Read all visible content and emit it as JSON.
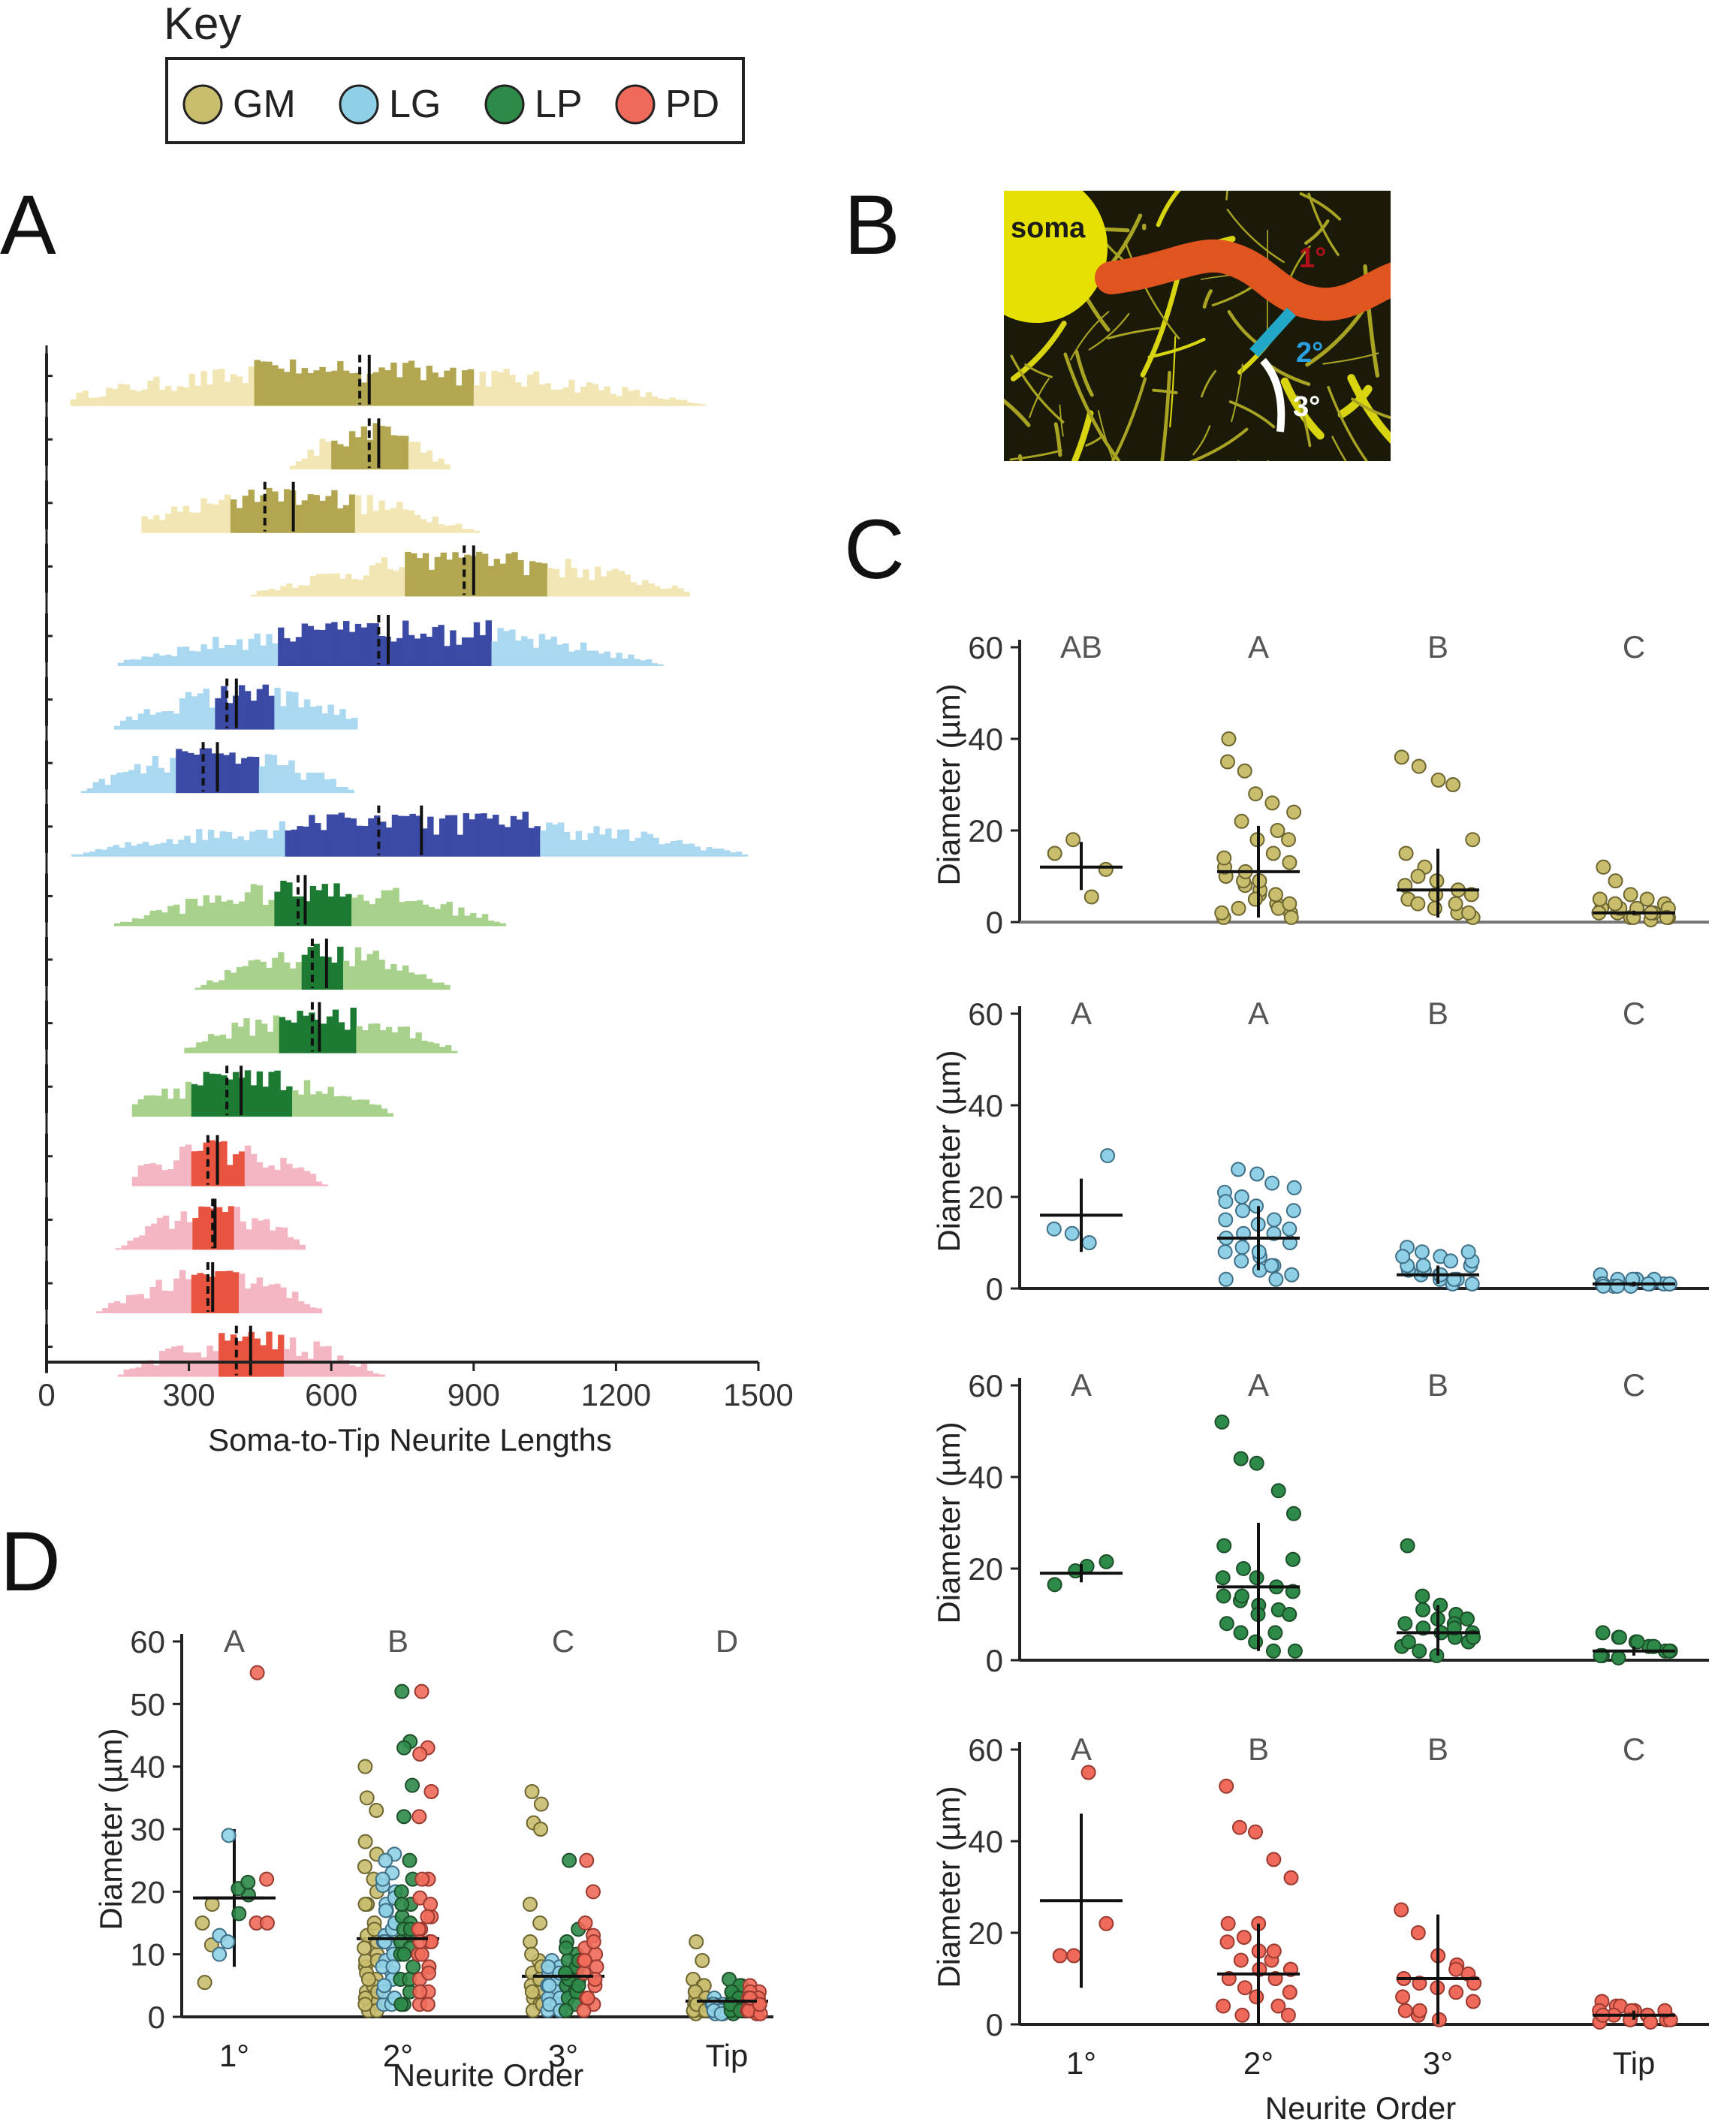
{
  "key": {
    "title": "Key",
    "items": [
      {
        "label": "GM",
        "color": "#c9bd6e"
      },
      {
        "label": "LG",
        "color": "#8fd0e6"
      },
      {
        "label": "LP",
        "color": "#2e8a48"
      },
      {
        "label": "PD",
        "color": "#ef6a5a"
      }
    ]
  },
  "panels": {
    "A": "A",
    "B": "B",
    "C": "C",
    "D": "D"
  },
  "micrograph": {
    "soma_label": "soma",
    "primary_label": "1°",
    "secondary_label": "2°",
    "tertiary_label": "3°"
  },
  "chart_data": [
    {
      "id": "A",
      "type": "bar",
      "xlabel": "Soma-to-Tip Neurite Lengths",
      "xlim": [
        0,
        1500
      ],
      "xticks": [
        "0",
        "300",
        "600",
        "900",
        "1200",
        "1500"
      ],
      "series": [
        {
          "cell": "GM",
          "light": "#f2e7b4",
          "dark": "#b3a651",
          "range": [
            50,
            1500
          ],
          "iqr": [
            440,
            900
          ],
          "medians": [
            660,
            680
          ]
        },
        {
          "cell": "GM",
          "light": "#f2e7b4",
          "dark": "#b3a651",
          "range": [
            500,
            850
          ],
          "iqr": [
            600,
            760
          ],
          "medians": [
            680,
            700
          ]
        },
        {
          "cell": "GM",
          "light": "#f2e7b4",
          "dark": "#b3a651",
          "range": [
            200,
            1000
          ],
          "iqr": [
            390,
            650
          ],
          "medians": [
            460,
            520
          ]
        },
        {
          "cell": "GM",
          "light": "#f2e7b4",
          "dark": "#b3a651",
          "range": [
            380,
            1350
          ],
          "iqr": [
            750,
            1050
          ],
          "medians": [
            880,
            900
          ]
        },
        {
          "cell": "LG",
          "light": "#a9d8f0",
          "dark": "#3a4aa5",
          "range": [
            150,
            1350
          ],
          "iqr": [
            490,
            940
          ],
          "medians": [
            700,
            720
          ]
        },
        {
          "cell": "LG",
          "light": "#a9d8f0",
          "dark": "#3a4aa5",
          "range": [
            80,
            650
          ],
          "iqr": [
            350,
            480
          ],
          "medians": [
            380,
            400
          ]
        },
        {
          "cell": "LG",
          "light": "#a9d8f0",
          "dark": "#3a4aa5",
          "range": [
            60,
            650
          ],
          "iqr": [
            270,
            450
          ],
          "medians": [
            330,
            360
          ]
        },
        {
          "cell": "LG",
          "light": "#a9d8f0",
          "dark": "#3a4aa5",
          "range": [
            40,
            1500
          ],
          "iqr": [
            500,
            1040
          ],
          "medians": [
            700,
            790
          ]
        },
        {
          "cell": "LP",
          "light": "#a8d18c",
          "dark": "#1c7a32",
          "range": [
            130,
            980
          ],
          "iqr": [
            480,
            640
          ],
          "medians": [
            530,
            545
          ]
        },
        {
          "cell": "LP",
          "light": "#a8d18c",
          "dark": "#1c7a32",
          "range": [
            300,
            850
          ],
          "iqr": [
            540,
            630
          ],
          "medians": [
            560,
            590
          ]
        },
        {
          "cell": "LP",
          "light": "#a8d18c",
          "dark": "#1c7a32",
          "range": [
            290,
            900
          ],
          "iqr": [
            490,
            650
          ],
          "medians": [
            560,
            575
          ]
        },
        {
          "cell": "LP",
          "light": "#a8d18c",
          "dark": "#1c7a32",
          "range": [
            180,
            850
          ],
          "iqr": [
            300,
            520
          ],
          "medians": [
            380,
            410
          ]
        },
        {
          "cell": "PD",
          "light": "#f4b6c2",
          "dark": "#e8543f",
          "range": [
            180,
            640
          ],
          "iqr": [
            310,
            420
          ],
          "medians": [
            340,
            360
          ]
        },
        {
          "cell": "PD",
          "light": "#f4b6c2",
          "dark": "#e8543f",
          "range": [
            120,
            540
          ],
          "iqr": [
            310,
            400
          ],
          "medians": [
            350,
            355
          ]
        },
        {
          "cell": "PD",
          "light": "#f4b6c2",
          "dark": "#e8543f",
          "range": [
            80,
            570
          ],
          "iqr": [
            300,
            400
          ],
          "medians": [
            340,
            350
          ]
        },
        {
          "cell": "PD",
          "light": "#f4b6c2",
          "dark": "#e8543f",
          "range": [
            150,
            720
          ],
          "iqr": [
            360,
            500
          ],
          "medians": [
            400,
            430
          ]
        }
      ]
    },
    {
      "id": "C-GM",
      "type": "scatter",
      "cell": "GM",
      "ylabel": "Diameter (µm)",
      "ylim": [
        0,
        60
      ],
      "yticks": [
        "0",
        "20",
        "40",
        "60"
      ],
      "categories": [
        "1°",
        "2°",
        "3°",
        "Tip"
      ],
      "group_letters": [
        "AB",
        "A",
        "B",
        "C"
      ],
      "means": [
        12,
        11,
        7,
        2
      ],
      "err_high": [
        17.5,
        21,
        16,
        2.5
      ],
      "err_low": [
        7,
        1,
        1,
        1.5
      ],
      "points": [
        [
          15,
          18,
          5.5,
          11.5
        ],
        [
          35,
          22,
          18,
          15,
          13,
          10,
          8,
          6,
          4,
          2,
          1,
          3,
          7,
          20,
          24,
          12,
          9,
          5,
          3,
          1,
          40,
          33,
          28,
          26,
          18,
          14,
          11,
          9,
          6,
          4,
          2
        ],
        [
          36,
          34,
          31,
          30,
          18,
          15,
          12,
          9,
          7,
          6,
          5,
          4,
          3,
          2,
          1,
          8,
          10,
          6,
          4,
          2
        ],
        [
          12,
          9,
          6,
          5,
          4,
          3,
          2,
          1,
          0.5,
          1,
          2,
          3,
          1,
          2,
          3,
          5,
          4,
          3,
          2,
          1
        ]
      ]
    },
    {
      "id": "C-LG",
      "type": "scatter",
      "cell": "LG",
      "ylabel": "Diameter (µm)",
      "ylim": [
        0,
        60
      ],
      "yticks": [
        "0",
        "20",
        "40",
        "60"
      ],
      "categories": [
        "1°",
        "2°",
        "3°",
        "Tip"
      ],
      "group_letters": [
        "A",
        "A",
        "B",
        "C"
      ],
      "means": [
        16,
        11,
        3,
        1
      ],
      "err_high": [
        24,
        18,
        5,
        1.5
      ],
      "err_low": [
        8,
        4,
        1,
        0.5
      ],
      "points": [
        [
          13,
          12,
          10,
          29
        ],
        [
          21,
          20,
          18,
          15,
          13,
          11,
          9,
          7,
          5,
          3,
          2,
          26,
          25,
          23,
          22,
          19,
          17,
          14,
          12,
          10,
          8,
          6,
          4,
          2,
          17,
          15,
          12,
          8,
          5,
          3
        ],
        [
          9,
          8,
          7,
          6,
          5,
          4,
          3,
          2,
          1,
          6,
          5,
          4,
          3,
          2,
          8,
          7,
          5,
          3,
          2,
          1
        ],
        [
          3,
          2,
          2,
          1,
          1,
          1,
          0.5,
          0.5,
          2,
          1,
          1,
          0.5,
          2,
          1,
          1,
          0.5
        ]
      ]
    },
    {
      "id": "C-LP",
      "type": "scatter",
      "cell": "LP",
      "ylabel": "Diameter (µm)",
      "ylim": [
        0,
        60
      ],
      "yticks": [
        "0",
        "20",
        "40",
        "60"
      ],
      "categories": [
        "1°",
        "2°",
        "3°",
        "Tip"
      ],
      "group_letters": [
        "A",
        "A",
        "B",
        "C"
      ],
      "means": [
        19,
        16,
        6,
        2
      ],
      "err_high": [
        21,
        30,
        12,
        3
      ],
      "err_low": [
        17,
        2,
        1,
        1
      ],
      "points": [
        [
          16.5,
          19.5,
          20.5,
          21.5
        ],
        [
          52,
          44,
          43,
          37,
          32,
          25,
          20,
          18,
          16,
          15,
          14,
          13,
          12,
          11,
          10,
          8,
          6,
          4,
          2,
          22,
          18,
          14,
          10,
          6,
          2
        ],
        [
          25,
          14,
          12,
          10,
          9,
          8,
          7,
          6,
          5,
          4,
          3,
          2,
          1,
          8,
          6,
          4,
          11,
          9,
          7,
          5
        ],
        [
          6,
          5,
          4,
          3,
          2,
          1,
          0.5,
          4,
          3,
          2,
          1,
          5,
          4,
          3,
          2,
          1
        ]
      ]
    },
    {
      "id": "C-PD",
      "type": "scatter",
      "cell": "PD",
      "ylabel": "Diameter (µm)",
      "xlabel": "Neurite Order",
      "ylim": [
        0,
        60
      ],
      "yticks": [
        "0",
        "20",
        "40",
        "60"
      ],
      "categories": [
        "1°",
        "2°",
        "3°",
        "Tip"
      ],
      "group_letters": [
        "A",
        "B",
        "B",
        "C"
      ],
      "means": [
        27,
        11,
        10,
        2
      ],
      "err_high": [
        46,
        22,
        24,
        3
      ],
      "err_low": [
        8,
        0,
        0,
        1
      ],
      "points": [
        [
          15,
          15,
          55,
          22
        ],
        [
          52,
          43,
          42,
          36,
          32,
          22,
          19,
          16,
          14,
          12,
          10,
          8,
          6,
          4,
          2,
          18,
          14,
          12,
          10,
          7,
          4,
          2,
          22,
          16,
          12
        ],
        [
          25,
          20,
          15,
          13,
          11,
          10,
          9,
          8,
          7,
          5,
          3,
          2,
          1,
          12,
          9,
          6,
          3
        ],
        [
          5,
          4,
          3,
          2,
          1,
          0.5,
          4,
          3,
          2,
          1,
          3,
          2,
          1,
          0.5,
          3,
          2
        ]
      ]
    },
    {
      "id": "D",
      "type": "scatter",
      "ylabel": "Diameter (µm)",
      "xlabel": "Neurite Order",
      "ylim": [
        0,
        60
      ],
      "yticks": [
        "0",
        "10",
        "20",
        "30",
        "40",
        "50",
        "60"
      ],
      "categories": [
        "1°",
        "2°",
        "3°",
        "Tip"
      ],
      "group_letters": [
        "A",
        "B",
        "C",
        "D"
      ],
      "means": [
        19,
        12.5,
        6.5,
        2.5
      ],
      "err_high": [
        30,
        12.5,
        6.5,
        2.5
      ],
      "err_low": [
        8,
        12.5,
        6.5,
        2.5
      ]
    }
  ]
}
